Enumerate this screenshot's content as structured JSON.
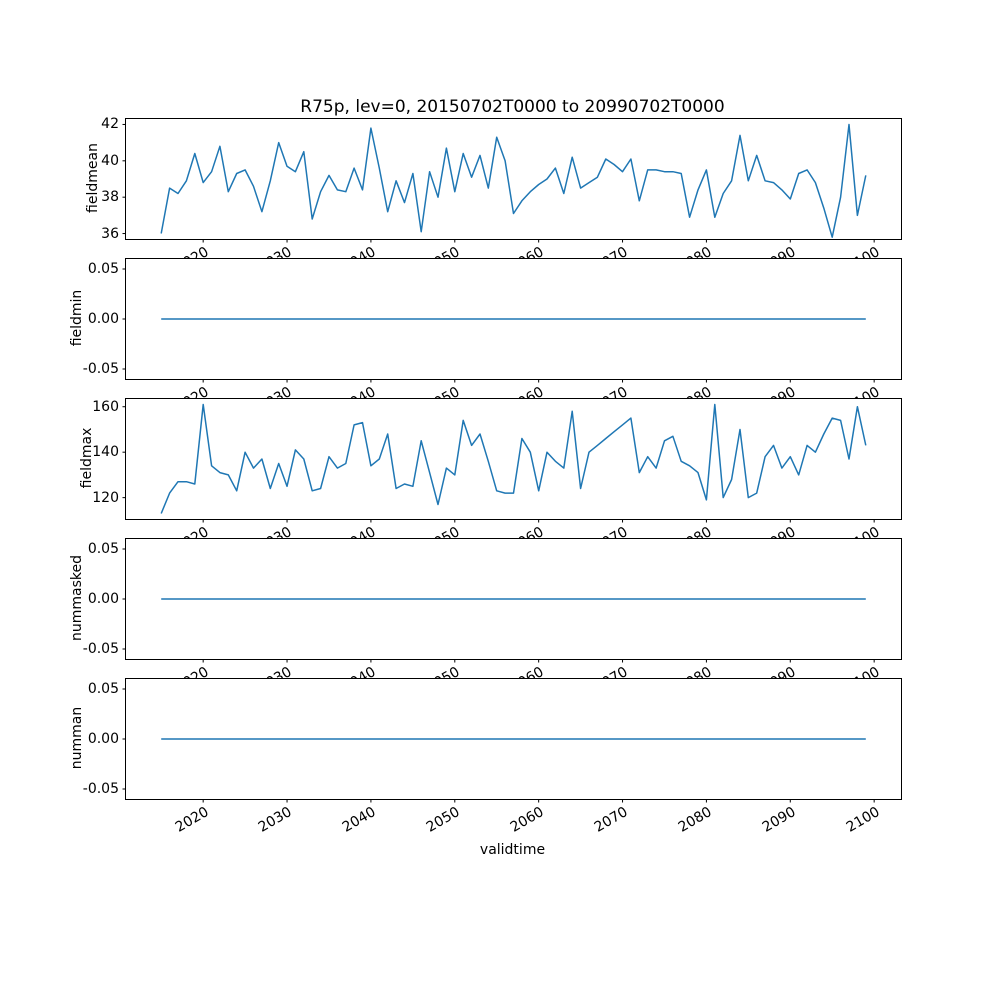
{
  "chart_data": {
    "type": "line",
    "title": "R75p, lev=0, 20150702T0000 to 20990702T0000",
    "xlabel": "validtime",
    "line_color": "#1f77b4",
    "axes_color": "#000000",
    "legend": "none",
    "grid": false,
    "x": [
      2015,
      2016,
      2017,
      2018,
      2019,
      2020,
      2021,
      2022,
      2023,
      2024,
      2025,
      2026,
      2027,
      2028,
      2029,
      2030,
      2031,
      2032,
      2033,
      2034,
      2035,
      2036,
      2037,
      2038,
      2039,
      2040,
      2041,
      2042,
      2043,
      2044,
      2045,
      2046,
      2047,
      2048,
      2049,
      2050,
      2051,
      2052,
      2053,
      2054,
      2055,
      2056,
      2057,
      2058,
      2059,
      2060,
      2061,
      2062,
      2063,
      2064,
      2065,
      2066,
      2067,
      2068,
      2069,
      2070,
      2071,
      2072,
      2073,
      2074,
      2075,
      2076,
      2077,
      2078,
      2079,
      2080,
      2081,
      2082,
      2083,
      2084,
      2085,
      2086,
      2087,
      2088,
      2089,
      2090,
      2091,
      2092,
      2093,
      2094,
      2095,
      2096,
      2097,
      2098,
      2099
    ],
    "xlim": [
      2010.8,
      2103.2
    ],
    "xticks": [
      2020,
      2030,
      2040,
      2050,
      2060,
      2070,
      2080,
      2090,
      2100
    ],
    "xtick_labels": [
      "2020",
      "2030",
      "2040",
      "2050",
      "2060",
      "2070",
      "2080",
      "2090",
      "2100"
    ],
    "xtick_rotation_deg": 30,
    "subplots": [
      {
        "ylabel": "fieldmean",
        "ylim": [
          35.7,
          42.3
        ],
        "yticks": [
          36,
          38,
          40,
          42
        ],
        "ytick_labels": [
          "36",
          "38",
          "40",
          "42"
        ],
        "values": [
          36.0,
          38.5,
          38.2,
          38.9,
          40.4,
          38.8,
          39.4,
          40.8,
          38.3,
          39.3,
          39.5,
          38.6,
          37.2,
          38.9,
          41.0,
          39.7,
          39.4,
          40.5,
          36.8,
          38.3,
          39.2,
          38.4,
          38.3,
          39.6,
          38.4,
          41.8,
          39.6,
          37.2,
          38.9,
          37.7,
          39.3,
          36.1,
          39.4,
          38.0,
          40.7,
          38.3,
          40.4,
          39.1,
          40.3,
          38.5,
          41.3,
          40.0,
          37.1,
          37.8,
          38.3,
          38.7,
          39.0,
          39.6,
          38.2,
          40.2,
          38.5,
          38.8,
          39.1,
          40.1,
          39.8,
          39.4,
          40.1,
          37.8,
          39.5,
          39.5,
          39.4,
          39.4,
          39.3,
          36.9,
          38.4,
          39.5,
          36.9,
          38.2,
          38.9,
          41.4,
          38.9,
          40.3,
          38.9,
          38.8,
          38.4,
          37.9,
          39.3,
          39.5,
          38.8,
          37.4,
          35.8,
          38.0,
          42.0,
          37.0,
          39.2
        ]
      },
      {
        "ylabel": "fieldmin",
        "ylim": [
          -0.06,
          0.06
        ],
        "yticks": [
          -0.05,
          0.0,
          0.05
        ],
        "ytick_labels": [
          "-0.05",
          "0.00",
          "0.05"
        ],
        "constant": 0.0
      },
      {
        "ylabel": "fieldmax",
        "ylim": [
          110.6,
          163.4
        ],
        "yticks": [
          120,
          140,
          160
        ],
        "ytick_labels": [
          "120",
          "140",
          "160"
        ],
        "values": [
          113,
          122,
          127,
          127,
          126,
          161,
          134,
          131,
          130,
          123,
          140,
          133,
          137,
          124,
          135,
          125,
          141,
          137,
          123,
          124,
          138,
          133,
          135,
          152,
          153,
          134,
          137,
          148,
          124,
          126,
          125,
          145,
          131,
          117,
          133,
          130,
          154,
          143,
          148,
          136,
          123,
          122,
          122,
          146,
          140,
          123,
          140,
          136,
          133,
          158,
          124,
          140,
          143,
          146,
          149,
          152,
          155,
          131,
          138,
          133,
          145,
          147,
          136,
          134,
          131,
          119,
          161,
          120,
          128,
          150,
          120,
          122,
          138,
          143,
          133,
          138,
          130,
          143,
          140,
          148,
          155,
          154,
          137,
          160,
          143
        ]
      },
      {
        "ylabel": "nummasked",
        "ylim": [
          -0.06,
          0.06
        ],
        "yticks": [
          -0.05,
          0.0,
          0.05
        ],
        "ytick_labels": [
          "-0.05",
          "0.00",
          "0.05"
        ],
        "constant": 0.0
      },
      {
        "ylabel": "numman",
        "ylim": [
          -0.06,
          0.06
        ],
        "yticks": [
          -0.05,
          0.0,
          0.05
        ],
        "ytick_labels": [
          "-0.05",
          "0.00",
          "0.05"
        ],
        "constant": 0.0
      }
    ]
  }
}
